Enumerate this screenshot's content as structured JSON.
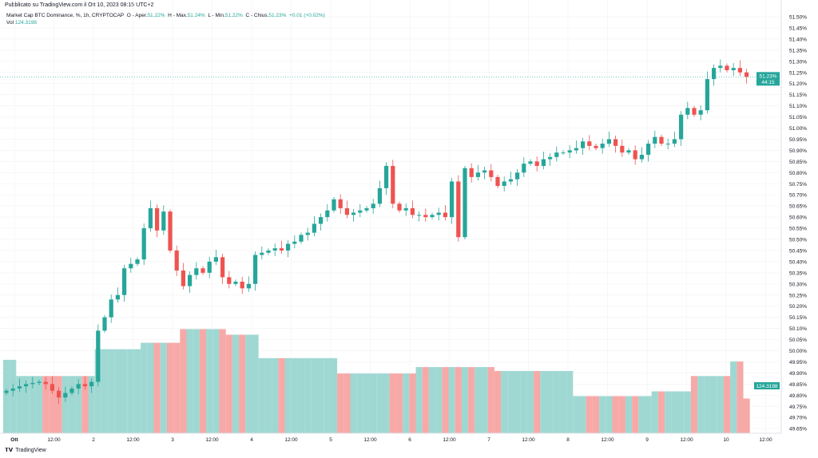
{
  "header": {
    "published": "Pubblicato su TradingView.com il Ott 10, 2023 08:15 UTC+2"
  },
  "legend": {
    "symbol": "Market Cap BTC Dominance, %, 1h, CRYPTOCAP",
    "open_label": "O - Aper.",
    "open": "51.22%",
    "high_label": "H - Max.",
    "high": "51.24%",
    "low_label": "L - Min.",
    "low": "51.22%",
    "close_label": "C - Chius.",
    "close": "51.23%",
    "change": "+0.01 (+0.02%)",
    "vol_label": "Vol",
    "vol": "124.3198"
  },
  "price_tag": {
    "price": "51.23%",
    "countdown": "44:15"
  },
  "volume_tag": "124.3198",
  "footer": {
    "brand": "TradingView"
  },
  "colors": {
    "up": "#26a69a",
    "down": "#ef5350",
    "vol_up": "#9fd8d2",
    "vol_down": "#f7a9a7"
  },
  "chart_data": {
    "type": "candlestick",
    "ylim": [
      49.63,
      51.52
    ],
    "y_ticks": [
      "51.50%",
      "51.45%",
      "51.40%",
      "51.35%",
      "51.30%",
      "51.25%",
      "51.20%",
      "51.15%",
      "51.10%",
      "51.05%",
      "51.00%",
      "50.95%",
      "50.90%",
      "50.85%",
      "50.80%",
      "50.75%",
      "50.70%",
      "50.65%",
      "50.60%",
      "50.55%",
      "50.50%",
      "50.45%",
      "50.40%",
      "50.35%",
      "50.30%",
      "50.25%",
      "50.20%",
      "50.15%",
      "50.10%",
      "50.05%",
      "50.00%",
      "49.95%",
      "49.90%",
      "49.85%",
      "49.80%",
      "49.75%",
      "49.70%",
      "49.65%"
    ],
    "x_ticks": [
      "Ott",
      "12:00",
      "2",
      "12:00",
      "3",
      "12:00",
      "4",
      "12:00",
      "5",
      "12:00",
      "6",
      "12:00",
      "7",
      "12:00",
      "8",
      "12:00",
      "9",
      "12:00",
      "10",
      "12:00"
    ],
    "first_open": 49.81,
    "closes": [
      49.82,
      49.83,
      49.84,
      49.85,
      49.855,
      49.86,
      49.85,
      49.82,
      49.79,
      49.81,
      49.83,
      49.85,
      49.84,
      49.86,
      50.09,
      50.15,
      50.23,
      50.25,
      50.37,
      50.39,
      50.41,
      50.55,
      50.64,
      50.54,
      50.625,
      50.45,
      50.36,
      50.29,
      50.34,
      50.37,
      50.35,
      50.4,
      50.42,
      50.33,
      50.3,
      50.31,
      50.28,
      50.3,
      50.43,
      50.44,
      50.45,
      50.46,
      50.45,
      50.48,
      50.49,
      50.52,
      50.53,
      50.57,
      50.6,
      50.63,
      50.68,
      50.64,
      50.61,
      50.62,
      50.63,
      50.64,
      50.66,
      50.73,
      50.83,
      50.66,
      50.63,
      50.64,
      50.61,
      50.61,
      50.6,
      50.61,
      50.62,
      50.6,
      50.76,
      50.51,
      50.82,
      50.78,
      50.8,
      50.81,
      50.78,
      50.74,
      50.76,
      50.77,
      50.8,
      50.84,
      50.85,
      50.83,
      50.86,
      50.87,
      50.89,
      50.89,
      50.9,
      50.91,
      50.94,
      50.92,
      50.91,
      50.93,
      50.95,
      50.92,
      50.89,
      50.9,
      50.86,
      50.88,
      50.93,
      50.96,
      50.93,
      50.93,
      50.95,
      51.06,
      51.09,
      51.06,
      51.08,
      51.22,
      51.27,
      51.28,
      51.26,
      51.27,
      51.25,
      51.23
    ],
    "volume_segments": [
      {
        "from": 0,
        "to": 1,
        "value": 263
      },
      {
        "from": 2,
        "to": 13,
        "value": 205
      },
      {
        "from": 14,
        "to": 20,
        "value": 301
      },
      {
        "from": 21,
        "to": 26,
        "value": 324
      },
      {
        "from": 27,
        "to": 33,
        "value": 373
      },
      {
        "from": 34,
        "to": 38,
        "value": 353
      },
      {
        "from": 39,
        "to": 50,
        "value": 269
      },
      {
        "from": 51,
        "to": 62,
        "value": 214
      },
      {
        "from": 63,
        "to": 74,
        "value": 237
      },
      {
        "from": 75,
        "to": 86,
        "value": 223
      },
      {
        "from": 87,
        "to": 98,
        "value": 133
      },
      {
        "from": 99,
        "to": 104,
        "value": 150
      },
      {
        "from": 105,
        "to": 110,
        "value": 205
      },
      {
        "from": 111,
        "to": 112,
        "value": 257
      },
      {
        "from": 113,
        "to": 113,
        "value": 124.3198
      }
    ],
    "volume_max": 540
  }
}
